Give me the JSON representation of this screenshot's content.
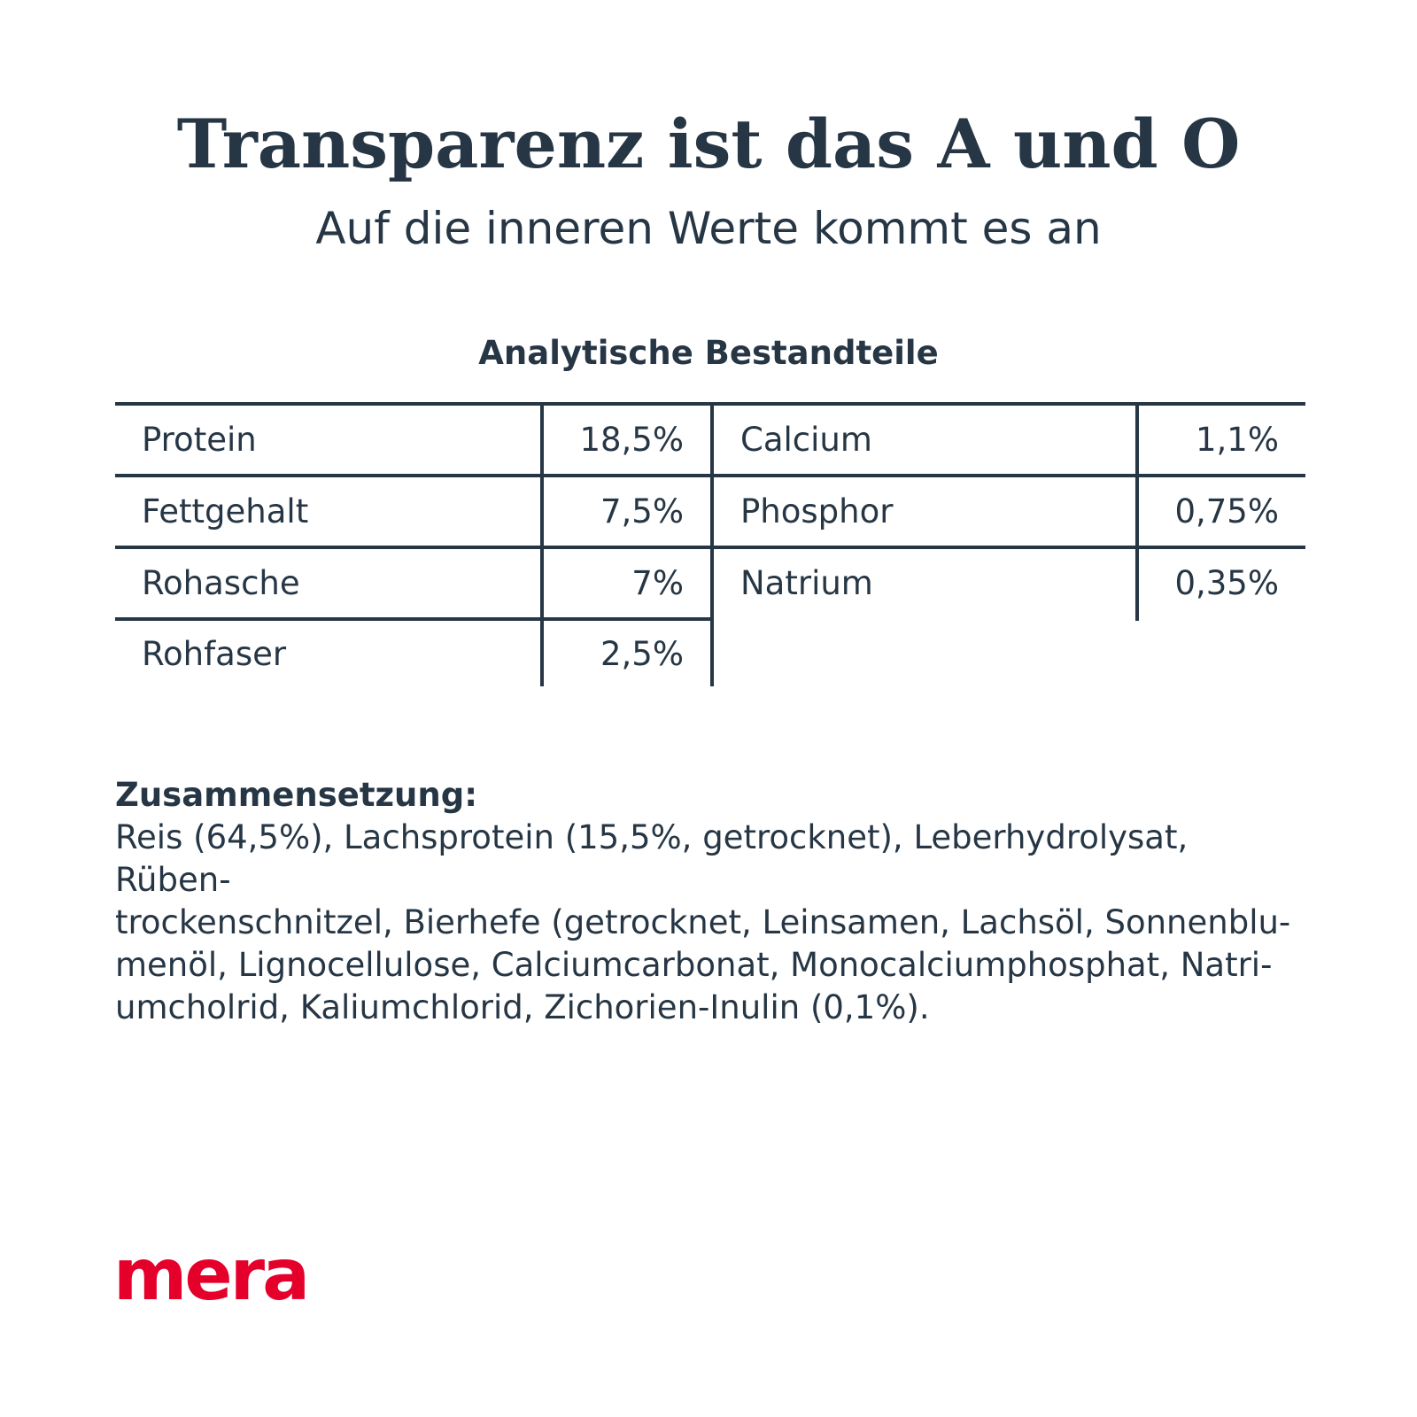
{
  "header": {
    "title": "Transparenz ist das A und O",
    "subtitle": "Auf die inneren Werte kommt es an"
  },
  "analysis": {
    "heading": "Analytische Bestandteile",
    "rows": [
      {
        "left_label": "Protein",
        "left_value": "18,5%",
        "right_label": "Calcium",
        "right_value": "1,1%"
      },
      {
        "left_label": "Fettgehalt",
        "left_value": "7,5%",
        "right_label": "Phosphor",
        "right_value": "0,75%"
      },
      {
        "left_label": "Rohasche",
        "left_value": "7%",
        "right_label": "Natrium",
        "right_value": "0,35%"
      },
      {
        "left_label": "Rohfaser",
        "left_value": "2,5%",
        "right_label": "",
        "right_value": ""
      }
    ]
  },
  "composition": {
    "heading": "Zusammensetzung:",
    "text": "Reis (64,5%), Lachsprotein (15,5%, getrocknet), Leberhydrolysat, Rüben-\ntrockenschnitzel, Bierhefe (getrocknet, Leinsamen, Lachsöl, Sonnenblu-\nmenöl, Lignocellulose, Calciumcarbonat, Monocalciumphosphat, Natri-\numcholrid, Kaliumchlorid, Zichorien-Inulin (0,1%)."
  },
  "brand": {
    "logo_text": "mera",
    "logo_color": "#e4002b",
    "text_color": "#263645"
  }
}
